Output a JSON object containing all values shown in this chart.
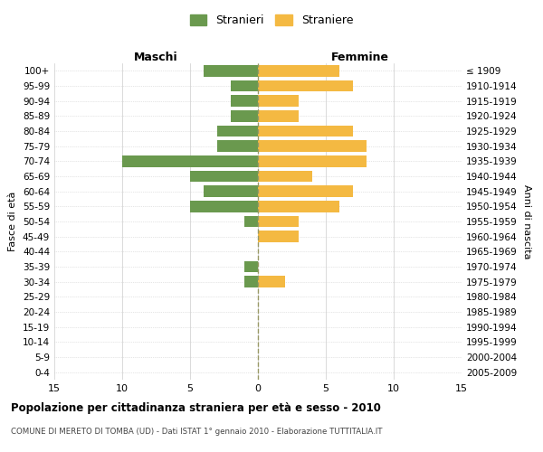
{
  "age_groups": [
    "0-4",
    "5-9",
    "10-14",
    "15-19",
    "20-24",
    "25-29",
    "30-34",
    "35-39",
    "40-44",
    "45-49",
    "50-54",
    "55-59",
    "60-64",
    "65-69",
    "70-74",
    "75-79",
    "80-84",
    "85-89",
    "90-94",
    "95-99",
    "100+"
  ],
  "birth_years": [
    "2005-2009",
    "2000-2004",
    "1995-1999",
    "1990-1994",
    "1985-1989",
    "1980-1984",
    "1975-1979",
    "1970-1974",
    "1965-1969",
    "1960-1964",
    "1955-1959",
    "1950-1954",
    "1945-1949",
    "1940-1944",
    "1935-1939",
    "1930-1934",
    "1925-1929",
    "1920-1924",
    "1915-1919",
    "1910-1914",
    "≤ 1909"
  ],
  "maschi": [
    4,
    2,
    2,
    2,
    3,
    3,
    10,
    5,
    4,
    5,
    1,
    0,
    0,
    1,
    1,
    0,
    0,
    0,
    0,
    0,
    0
  ],
  "femmine": [
    6,
    7,
    3,
    3,
    7,
    8,
    8,
    4,
    7,
    6,
    3,
    3,
    0,
    0,
    2,
    0,
    0,
    0,
    0,
    0,
    0
  ],
  "color_maschi": "#6a994e",
  "color_femmine": "#f4b942",
  "xlim": 15,
  "title": "Popolazione per cittadinanza straniera per età e sesso - 2010",
  "subtitle": "COMUNE DI MERETO DI TOMBA (UD) - Dati ISTAT 1° gennaio 2010 - Elaborazione TUTTITALIA.IT",
  "ylabel_left": "Fasce di età",
  "ylabel_right": "Anni di nascita",
  "legend_maschi": "Stranieri",
  "legend_femmine": "Straniere",
  "header_maschi": "Maschi",
  "header_femmine": "Femmine",
  "bg_color": "#ffffff",
  "grid_color": "#cccccc"
}
